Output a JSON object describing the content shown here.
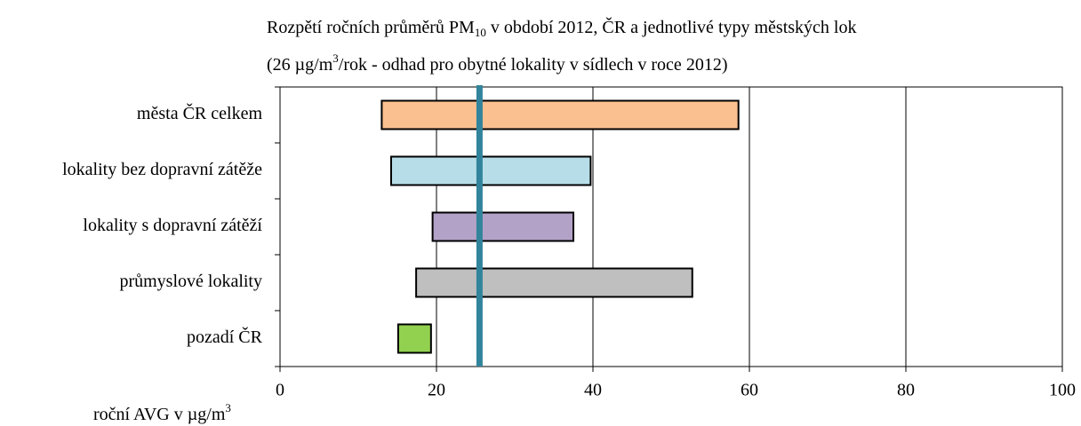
{
  "chart_data": {
    "type": "range_bar",
    "title": [
      "Rozpětí ročních průměrů PM",
      "10",
      " v období  2012, ČR a jednotlivé typy městských lok"
    ],
    "subtitle": [
      "(26 µg/m",
      "3",
      "/rok - odhad pro obytné lokality v sídlech v roce 2012)"
    ],
    "x_label": [
      "roční AVG v µg/m",
      "3"
    ],
    "categories": [
      "města ČR celkem",
      "lokality bez dopravní zátěže",
      "lokality s dopravní zátěží",
      "průmyslové lokality",
      "pozadí ČR"
    ],
    "low": [
      13,
      14.2,
      19.5,
      17.4,
      15.1
    ],
    "high": [
      58.6,
      39.7,
      37.5,
      52.7,
      19.3
    ],
    "colors": [
      "#fac090",
      "#b7dee8",
      "#b3a2c7",
      "#bfbfbf",
      "#92d050"
    ],
    "reference_line": {
      "value": 25.5,
      "color": "#31849b"
    },
    "xlim": [
      0,
      100
    ],
    "xticks": [
      0,
      20,
      40,
      60,
      80,
      100
    ],
    "grid": true
  }
}
